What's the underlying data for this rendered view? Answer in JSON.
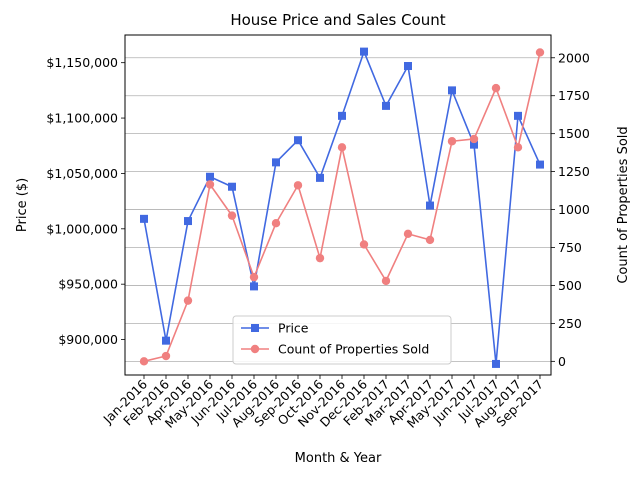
{
  "chart_data": {
    "type": "line",
    "title": "House Price and Sales Count",
    "xlabel": "Month & Year",
    "ylabel_left": "Price ($)",
    "ylabel_right": "Count of Properties Sold",
    "categories": [
      "Jan-2016",
      "Feb-2016",
      "Apr-2016",
      "May-2016",
      "Jun-2016",
      "Jul-2016",
      "Aug-2016",
      "Sep-2016",
      "Oct-2016",
      "Nov-2016",
      "Dec-2016",
      "Feb-2017",
      "Mar-2017",
      "Apr-2017",
      "May-2017",
      "Jun-2017",
      "Jul-2017",
      "Aug-2017",
      "Sep-2017"
    ],
    "left_axis": {
      "ylim": [
        868000,
        1175000
      ],
      "ticks": [
        900000,
        950000,
        1000000,
        1050000,
        1100000,
        1150000
      ],
      "tick_labels": [
        "$900,000",
        "$950,000",
        "$1,000,000",
        "$1,050,000",
        "$1,100,000",
        "$1,150,000"
      ]
    },
    "right_axis": {
      "ylim": [
        -90,
        2150
      ],
      "ticks": [
        0,
        250,
        500,
        750,
        1000,
        1250,
        1500,
        1750,
        2000
      ],
      "tick_labels": [
        "0",
        "250",
        "500",
        "750",
        "1000",
        "1250",
        "1500",
        "1750",
        "2000"
      ]
    },
    "grid": "horizontal-right-axis",
    "legend_position": "lower-center",
    "series": [
      {
        "name": "Price",
        "axis": "left",
        "color": "#4169e1",
        "marker": "square",
        "values": [
          1009000,
          899000,
          1007000,
          1047000,
          1038000,
          948000,
          1060000,
          1080000,
          1046000,
          1102000,
          1160000,
          1111000,
          1147000,
          1021000,
          1125000,
          1076000,
          878000,
          1102000,
          1058000
        ]
      },
      {
        "name": "Count of Properties Sold",
        "axis": "right",
        "color": "#f08080",
        "marker": "circle",
        "values": [
          0,
          35,
          400,
          1165,
          960,
          555,
          910,
          1160,
          680,
          1410,
          770,
          530,
          840,
          800,
          1450,
          1465,
          1800,
          1410,
          2035
        ]
      }
    ]
  }
}
